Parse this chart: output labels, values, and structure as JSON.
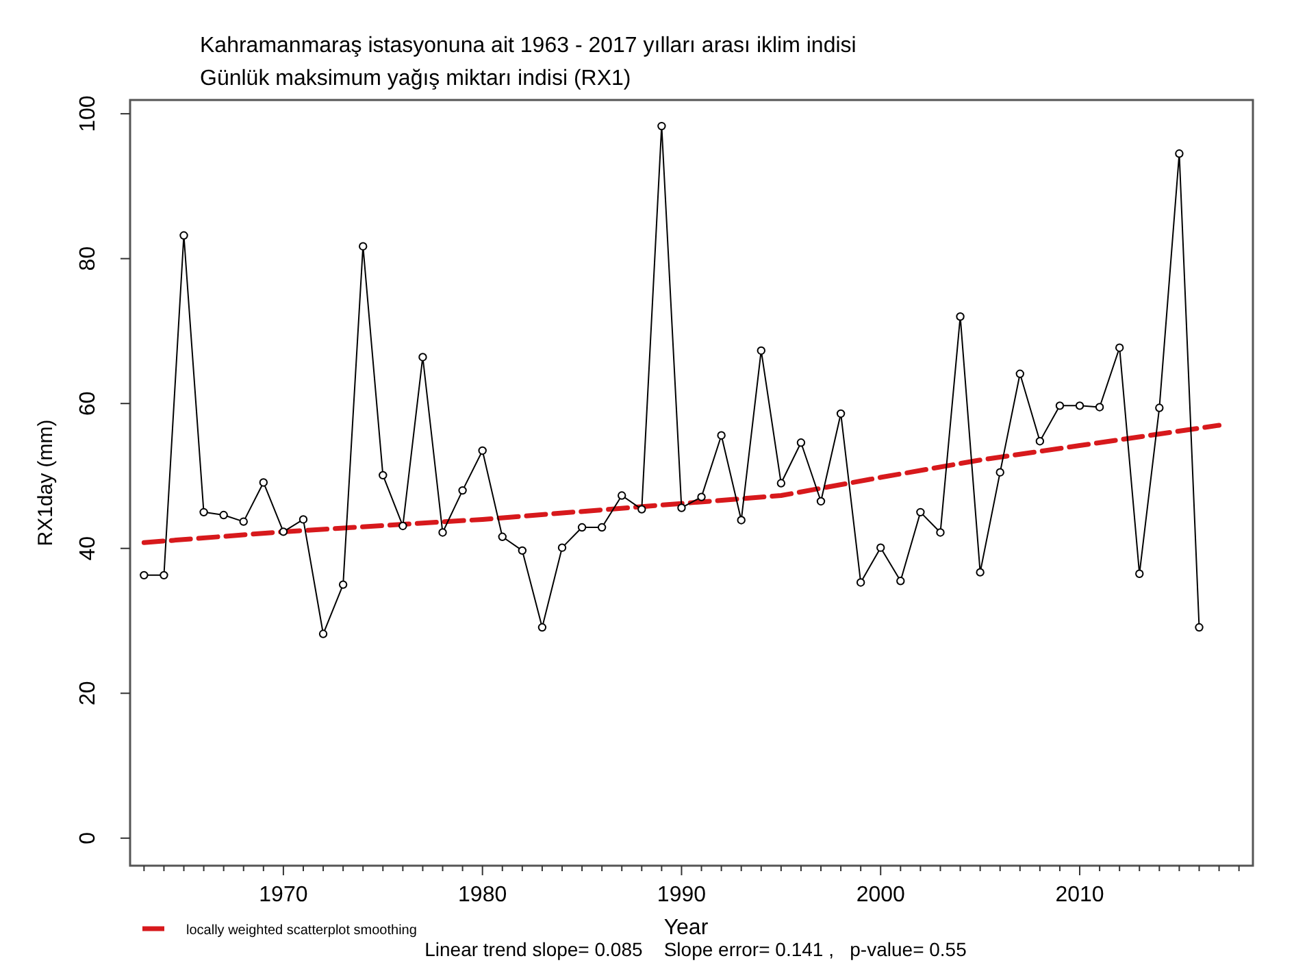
{
  "chart_data": {
    "type": "line",
    "title": "Kahramanmaraş istasyonuna ait 1963 - 2017 yılları arası iklim  indisi",
    "subtitle": "Günlük maksimum yağış miktarı indisi (RX1)",
    "xlabel": "Year",
    "ylabel": "RX1day  (mm)",
    "x": [
      1963,
      1964,
      1965,
      1966,
      1967,
      1968,
      1969,
      1970,
      1971,
      1972,
      1973,
      1974,
      1975,
      1976,
      1977,
      1978,
      1979,
      1980,
      1981,
      1982,
      1983,
      1984,
      1985,
      1986,
      1987,
      1988,
      1989,
      1990,
      1991,
      1992,
      1993,
      1994,
      1995,
      1996,
      1997,
      1998,
      1999,
      2000,
      2001,
      2002,
      2003,
      2004,
      2005,
      2006,
      2007,
      2008,
      2009,
      2010,
      2011,
      2012,
      2013,
      2014,
      2015,
      2016
    ],
    "series": [
      {
        "color": "#000000",
        "marker": "circle",
        "line_style": "solid",
        "values": [
          36.3,
          36.3,
          83.2,
          45,
          44.6,
          43.7,
          49.1,
          42.3,
          44,
          28.2,
          35,
          81.7,
          50.1,
          43.1,
          66.4,
          42.2,
          48,
          53.5,
          41.6,
          39.7,
          29.1,
          40.1,
          42.9,
          42.9,
          47.3,
          45.4,
          98.3,
          45.6,
          47.1,
          55.6,
          43.9,
          67.3,
          49,
          54.6,
          46.5,
          58.6,
          35.3,
          40.1,
          35.5,
          45,
          42.2,
          72,
          36.7,
          50.5,
          64.1,
          54.8,
          59.7,
          59.7,
          59.5,
          67.7,
          36.5,
          59.4,
          94.5,
          29.1
        ]
      },
      {
        "name": "locally weighted scatterplot smoothing",
        "color": "#d7191c",
        "marker": "none",
        "line_style": "dashed",
        "x": [
          1963,
          1970,
          1980,
          1990,
          1995,
          2000,
          2005,
          2010,
          2017
        ],
        "values": [
          40.8,
          42.3,
          44,
          46.2,
          47.3,
          49.8,
          52.2,
          54.2,
          57
        ]
      }
    ],
    "xlim": [
      1962.3,
      2018.7
    ],
    "ylim": [
      -3.8,
      101.9
    ],
    "xticks": [
      {
        "value": 1963,
        "label": null
      },
      {
        "value": 1964,
        "label": null
      },
      {
        "value": 1965,
        "label": null
      },
      {
        "value": 1966,
        "label": null
      },
      {
        "value": 1967,
        "label": null
      },
      {
        "value": 1968,
        "label": null
      },
      {
        "value": 1969,
        "label": null
      },
      1970,
      {
        "value": 1971,
        "label": null
      },
      {
        "value": 1972,
        "label": null
      },
      {
        "value": 1973,
        "label": null
      },
      {
        "value": 1974,
        "label": null
      },
      {
        "value": 1975,
        "label": null
      },
      {
        "value": 1976,
        "label": null
      },
      {
        "value": 1977,
        "label": null
      },
      {
        "value": 1978,
        "label": null
      },
      {
        "value": 1979,
        "label": null
      },
      1980,
      {
        "value": 1981,
        "label": null
      },
      {
        "value": 1982,
        "label": null
      },
      {
        "value": 1983,
        "label": null
      },
      {
        "value": 1984,
        "label": null
      },
      {
        "value": 1985,
        "label": null
      },
      {
        "value": 1986,
        "label": null
      },
      {
        "value": 1987,
        "label": null
      },
      {
        "value": 1988,
        "label": null
      },
      {
        "value": 1989,
        "label": null
      },
      1990,
      {
        "value": 1991,
        "label": null
      },
      {
        "value": 1992,
        "label": null
      },
      {
        "value": 1993,
        "label": null
      },
      {
        "value": 1994,
        "label": null
      },
      {
        "value": 1995,
        "label": null
      },
      {
        "value": 1996,
        "label": null
      },
      {
        "value": 1997,
        "label": null
      },
      {
        "value": 1998,
        "label": null
      },
      {
        "value": 1999,
        "label": null
      },
      2000,
      {
        "value": 2001,
        "label": null
      },
      {
        "value": 2002,
        "label": null
      },
      {
        "value": 2003,
        "label": null
      },
      {
        "value": 2004,
        "label": null
      },
      {
        "value": 2005,
        "label": null
      },
      {
        "value": 2006,
        "label": null
      },
      {
        "value": 2007,
        "label": null
      },
      {
        "value": 2008,
        "label": null
      },
      {
        "value": 2009,
        "label": null
      },
      2010,
      {
        "value": 2011,
        "label": null
      },
      {
        "value": 2012,
        "label": null
      },
      {
        "value": 2013,
        "label": null
      },
      {
        "value": 2014,
        "label": null
      },
      {
        "value": 2015,
        "label": null
      },
      {
        "value": 2016,
        "label": null
      },
      {
        "value": 2017,
        "label": null
      },
      {
        "value": 2018,
        "label": null
      }
    ],
    "yticks": [
      0,
      20,
      40,
      60,
      80,
      100
    ],
    "grid": false,
    "legend": "bottom left",
    "annotations": [
      "Linear trend slope= 0.085    Slope error= 0.141 ,   p-value= 0.55"
    ]
  }
}
